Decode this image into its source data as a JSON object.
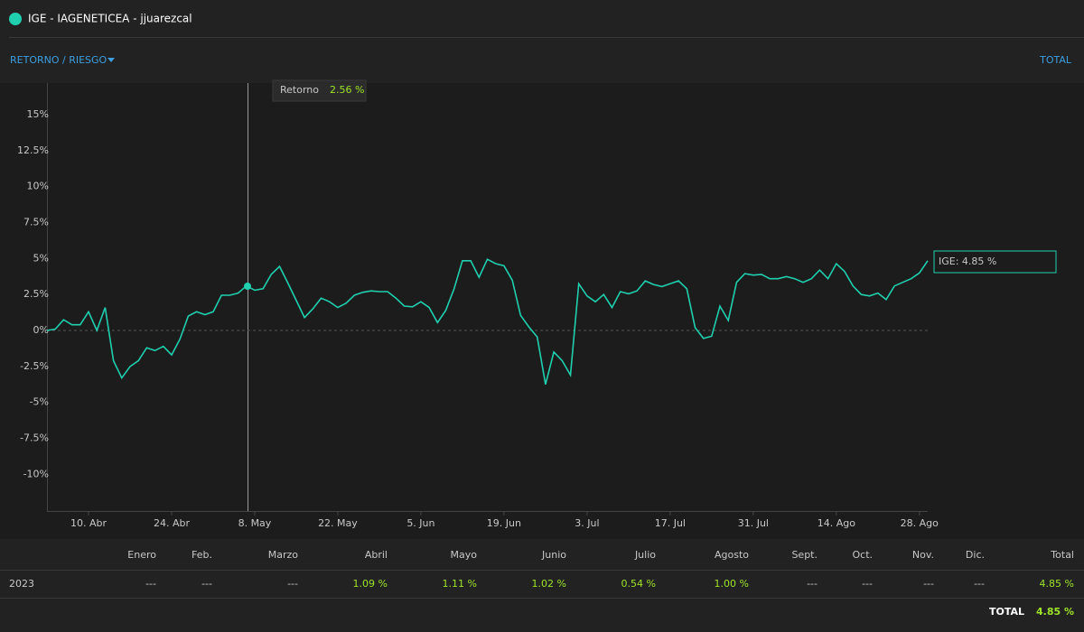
{
  "header": {
    "title": "IGE - IAGENETICEA - jjuarezcal",
    "menu": "RETORNO / RIESGO",
    "right_link": "TOTAL"
  },
  "chart_data": {
    "type": "line",
    "categories": [
      null,
      null,
      null,
      null,
      null,
      "10. Abr",
      null,
      null,
      null,
      null,
      null,
      null,
      null,
      null,
      null,
      "24. Abr",
      null,
      null,
      null,
      null,
      null,
      null,
      null,
      null,
      null,
      "8. May",
      null,
      null,
      null,
      null,
      null,
      null,
      null,
      null,
      null,
      "22. May",
      null,
      null,
      null,
      null,
      null,
      null,
      null,
      null,
      null,
      "5. Jun",
      null,
      null,
      null,
      null,
      null,
      null,
      null,
      null,
      null,
      "19. Jun",
      null,
      null,
      null,
      null,
      null,
      null,
      null,
      null,
      null,
      "3. Jul",
      null,
      null,
      null,
      null,
      null,
      null,
      null,
      null,
      null,
      "17. Jul",
      null,
      null,
      null,
      null,
      null,
      null,
      null,
      null,
      null,
      "31. Jul",
      null,
      null,
      null,
      null,
      null,
      null,
      null,
      null,
      null,
      "14. Ago",
      null,
      null,
      null,
      null,
      null,
      null,
      null,
      null,
      null,
      "28. Ago",
      null
    ],
    "series": [
      {
        "name": "IGE",
        "color": "#1fcfae",
        "values": [
          0.0,
          0.1,
          0.75,
          0.4,
          0.4,
          1.3,
          0.0,
          1.6,
          -2.1,
          -3.3,
          -2.5,
          -2.1,
          -1.2,
          -1.4,
          -1.1,
          -1.7,
          -0.6,
          1.0,
          1.3,
          1.1,
          1.3,
          2.45,
          2.45,
          2.6,
          3.1,
          2.8,
          2.9,
          3.9,
          4.45,
          3.3,
          2.1,
          0.9,
          1.5,
          2.25,
          2.0,
          1.6,
          1.9,
          2.45,
          2.65,
          2.75,
          2.7,
          2.7,
          2.25,
          1.7,
          1.65,
          2.0,
          1.6,
          0.55,
          1.4,
          2.9,
          4.85,
          4.85,
          3.7,
          4.95,
          4.65,
          4.5,
          3.5,
          1.05,
          0.25,
          -0.45,
          -3.75,
          -1.5,
          -2.1,
          -3.1,
          3.25,
          2.4,
          2.0,
          2.5,
          1.6,
          2.7,
          2.55,
          2.75,
          3.45,
          3.2,
          3.05,
          3.25,
          3.45,
          2.9,
          0.2,
          -0.55,
          -0.4,
          1.7,
          0.7,
          3.35,
          3.95,
          3.85,
          3.9,
          3.6,
          3.6,
          3.75,
          3.6,
          3.35,
          3.6,
          4.2,
          3.6,
          4.65,
          4.1,
          3.1,
          2.5,
          2.4,
          2.6,
          2.15,
          3.1,
          3.35,
          3.6,
          4.0,
          4.85
        ]
      }
    ],
    "ylim": [
      -12.55,
      17.2
    ],
    "yticks": [
      {
        "value": -10,
        "label": "-10%"
      },
      {
        "value": -7.5,
        "label": "-7.5%"
      },
      {
        "value": -5,
        "label": "-5%"
      },
      {
        "value": -2.5,
        "label": "-2.5%"
      },
      {
        "value": 0,
        "label": "0%"
      },
      {
        "value": 2.5,
        "label": "2.5%"
      },
      {
        "value": 5,
        "label": "5%"
      },
      {
        "value": 7.5,
        "label": "7.5%"
      },
      {
        "value": 10,
        "label": "10%"
      },
      {
        "value": 12.5,
        "label": "12.5%"
      },
      {
        "value": 15,
        "label": "15%"
      }
    ],
    "tooltip": {
      "label": "Retorno",
      "value": "2.56 %"
    },
    "end_label": "IGE: 4.85 %"
  },
  "table": {
    "columns": [
      "Enero",
      "Feb.",
      "Marzo",
      "Abril",
      "Mayo",
      "Junio",
      "Julio",
      "Agosto",
      "Sept.",
      "Oct.",
      "Nov.",
      "Dic.",
      "Total"
    ],
    "rows": [
      [
        "2023",
        "---",
        "---",
        "---",
        "1.09 %",
        "1.11 %",
        "1.02 %",
        "0.54 %",
        "1.00 %",
        "---",
        "---",
        "---",
        "---",
        "4.85 %"
      ]
    ],
    "total_label": "TOTAL",
    "total_value": "4.85 %"
  }
}
